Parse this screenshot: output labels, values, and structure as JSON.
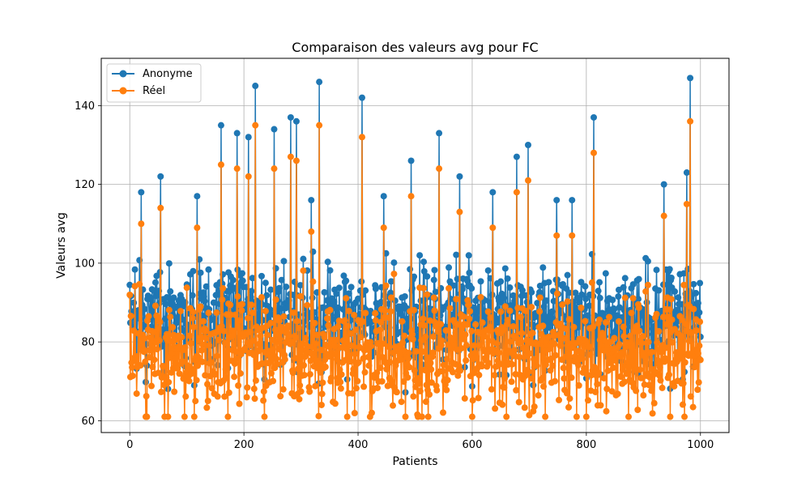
{
  "chart_data": {
    "type": "line",
    "title": "Comparaison des valeurs avg pour FC",
    "xlabel": "Patients",
    "ylabel": "Valeurs avg",
    "xlim": [
      -50,
      1050
    ],
    "ylim": [
      57,
      152
    ],
    "xticks": [
      0,
      200,
      400,
      600,
      800,
      1000
    ],
    "yticks": [
      60,
      80,
      100,
      120,
      140
    ],
    "grid": true,
    "legend_position": "top-left",
    "n_points": 1001,
    "series": [
      {
        "name": "Anonyme",
        "color": "#1f77b4",
        "marker": "circle",
        "approx_range": [
          67,
          147
        ],
        "peaks": [
          {
            "x": 20,
            "y": 118
          },
          {
            "x": 54,
            "y": 122
          },
          {
            "x": 118,
            "y": 117
          },
          {
            "x": 160,
            "y": 135
          },
          {
            "x": 188,
            "y": 133
          },
          {
            "x": 208,
            "y": 132
          },
          {
            "x": 220,
            "y": 145
          },
          {
            "x": 253,
            "y": 134
          },
          {
            "x": 282,
            "y": 137
          },
          {
            "x": 292,
            "y": 136
          },
          {
            "x": 318,
            "y": 116
          },
          {
            "x": 332,
            "y": 146
          },
          {
            "x": 407,
            "y": 142
          },
          {
            "x": 445,
            "y": 117
          },
          {
            "x": 493,
            "y": 126
          },
          {
            "x": 542,
            "y": 133
          },
          {
            "x": 578,
            "y": 122
          },
          {
            "x": 636,
            "y": 118
          },
          {
            "x": 678,
            "y": 127
          },
          {
            "x": 698,
            "y": 130
          },
          {
            "x": 748,
            "y": 116
          },
          {
            "x": 775,
            "y": 116
          },
          {
            "x": 813,
            "y": 137
          },
          {
            "x": 936,
            "y": 120
          },
          {
            "x": 976,
            "y": 123
          },
          {
            "x": 982,
            "y": 147
          }
        ]
      },
      {
        "name": "Réel",
        "color": "#ff7f0e",
        "marker": "circle",
        "approx_range": [
          61,
          136
        ],
        "peaks": [
          {
            "x": 20,
            "y": 110
          },
          {
            "x": 54,
            "y": 114
          },
          {
            "x": 118,
            "y": 109
          },
          {
            "x": 160,
            "y": 125
          },
          {
            "x": 188,
            "y": 124
          },
          {
            "x": 208,
            "y": 122
          },
          {
            "x": 220,
            "y": 135
          },
          {
            "x": 253,
            "y": 124
          },
          {
            "x": 282,
            "y": 127
          },
          {
            "x": 292,
            "y": 126
          },
          {
            "x": 318,
            "y": 108
          },
          {
            "x": 332,
            "y": 135
          },
          {
            "x": 407,
            "y": 132
          },
          {
            "x": 445,
            "y": 109
          },
          {
            "x": 493,
            "y": 117
          },
          {
            "x": 542,
            "y": 124
          },
          {
            "x": 578,
            "y": 113
          },
          {
            "x": 636,
            "y": 109
          },
          {
            "x": 678,
            "y": 118
          },
          {
            "x": 698,
            "y": 121
          },
          {
            "x": 748,
            "y": 107
          },
          {
            "x": 775,
            "y": 107
          },
          {
            "x": 813,
            "y": 128
          },
          {
            "x": 936,
            "y": 112
          },
          {
            "x": 976,
            "y": 115
          },
          {
            "x": 982,
            "y": 136
          }
        ]
      }
    ]
  }
}
